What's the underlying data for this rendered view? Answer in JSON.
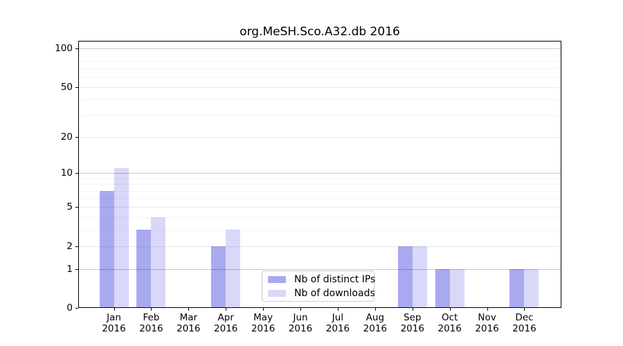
{
  "title": "org.MeSH.Sco.A32.db 2016",
  "chart_data": {
    "type": "bar",
    "title": "org.MeSH.Sco.A32.db 2016",
    "year": "2016",
    "months": [
      "Jan",
      "Feb",
      "Mar",
      "Apr",
      "May",
      "Jun",
      "Jul",
      "Aug",
      "Sep",
      "Oct",
      "Nov",
      "Dec"
    ],
    "categories": [
      "Jan 2016",
      "Feb 2016",
      "Mar 2016",
      "Apr 2016",
      "May 2016",
      "Jun 2016",
      "Jul 2016",
      "Aug 2016",
      "Sep 2016",
      "Oct 2016",
      "Nov 2016",
      "Dec 2016"
    ],
    "series": [
      {
        "name": "Nb of distinct IPs",
        "color": "#a9a9f1",
        "values": [
          7,
          3,
          0,
          2,
          0,
          0,
          0,
          0,
          2,
          1,
          0,
          1
        ]
      },
      {
        "name": "Nb of downloads",
        "color": "#d8d8f8",
        "values": [
          11,
          4,
          0,
          3,
          0,
          0,
          0,
          0,
          2,
          1,
          0,
          1
        ]
      }
    ],
    "y_scale": "log1p",
    "ylabel": "",
    "xlabel": "",
    "y_ticks": [
      0,
      1,
      2,
      5,
      10,
      20,
      50,
      100
    ],
    "y_minor_gridlines": [
      3,
      4,
      6,
      7,
      8,
      9,
      30,
      40,
      60,
      70,
      80,
      90
    ],
    "y_major_gridlines": [
      1,
      10,
      100
    ],
    "ylim": [
      0,
      115
    ],
    "grid": "horizontal",
    "legend_position": "lower center inside plot",
    "colors": {
      "bar_distinct_ips": "#a9a9f1",
      "bar_downloads": "#d8d8f8",
      "spine": "#000000",
      "major_grid": "#c8c8c8",
      "minor_grid": "#f2f2f2",
      "background": "#ffffff"
    }
  }
}
